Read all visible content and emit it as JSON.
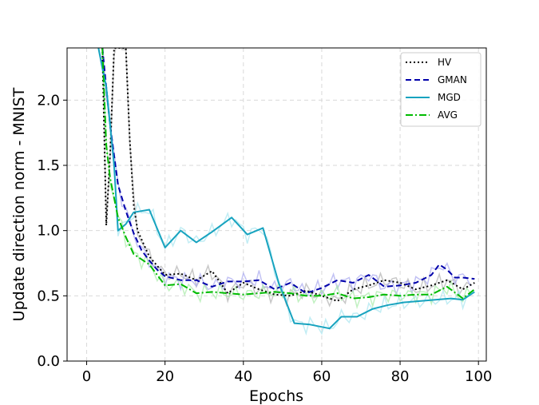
{
  "chart_data": {
    "type": "line",
    "xlabel": "Epochs",
    "ylabel": "Update direction norm - MNIST",
    "xlim": [
      -5,
      102
    ],
    "ylim": [
      0.0,
      2.4
    ],
    "xticks": [
      0,
      20,
      40,
      60,
      80,
      100
    ],
    "yticks": [
      0.0,
      0.5,
      1.0,
      1.5,
      2.0
    ],
    "xtick_labels": [
      "0",
      "20",
      "40",
      "60",
      "80",
      "100"
    ],
    "ytick_labels": [
      "0.0",
      "0.5",
      "1.0",
      "1.5",
      "2.0"
    ],
    "grid": true,
    "legend_position": "top-right",
    "series": [
      {
        "name": "HV",
        "color": "#000000",
        "linestyle": "dotted",
        "x": [
          4,
          5,
          6,
          7,
          8,
          9,
          10,
          11,
          12,
          13,
          16,
          20,
          24,
          28,
          32,
          36,
          40,
          44,
          48,
          52,
          56,
          60,
          64,
          68,
          72,
          76,
          80,
          84,
          88,
          92,
          96,
          99
        ],
        "y": [
          2.4,
          1.04,
          1.6,
          2.4,
          2.4,
          2.4,
          2.4,
          1.7,
          1.2,
          1.0,
          0.8,
          0.66,
          0.67,
          0.62,
          0.69,
          0.52,
          0.6,
          0.55,
          0.51,
          0.5,
          0.54,
          0.5,
          0.46,
          0.55,
          0.58,
          0.62,
          0.6,
          0.55,
          0.58,
          0.62,
          0.55,
          0.6
        ]
      },
      {
        "name": "GMAN",
        "color": "#0000aa",
        "linestyle": "dashed",
        "x": [
          4,
          6,
          8,
          10,
          12,
          14,
          16,
          18,
          20,
          24,
          28,
          32,
          36,
          40,
          44,
          48,
          52,
          56,
          60,
          64,
          68,
          72,
          76,
          80,
          84,
          88,
          90,
          92,
          94,
          96,
          99
        ],
        "y": [
          2.4,
          1.8,
          1.35,
          1.15,
          0.98,
          0.85,
          0.77,
          0.7,
          0.65,
          0.62,
          0.62,
          0.57,
          0.61,
          0.61,
          0.62,
          0.55,
          0.6,
          0.52,
          0.56,
          0.62,
          0.6,
          0.66,
          0.57,
          0.58,
          0.6,
          0.66,
          0.74,
          0.7,
          0.64,
          0.64,
          0.63
        ]
      },
      {
        "name": "MGD",
        "color": "#17a3bf",
        "linestyle": "solid",
        "x": [
          3,
          5,
          7,
          8,
          10,
          12,
          16,
          20,
          24,
          28,
          32,
          37,
          41,
          45,
          49,
          53,
          57,
          62,
          65,
          69,
          73,
          77,
          81,
          85,
          89,
          93,
          96,
          99
        ],
        "y": [
          2.4,
          2.1,
          1.5,
          1.0,
          1.05,
          1.14,
          1.16,
          0.87,
          1.0,
          0.91,
          0.99,
          1.1,
          0.97,
          1.02,
          0.6,
          0.29,
          0.28,
          0.25,
          0.34,
          0.34,
          0.4,
          0.43,
          0.45,
          0.46,
          0.47,
          0.48,
          0.47,
          0.53
        ]
      },
      {
        "name": "AVG",
        "color": "#00bb00",
        "linestyle": "dashdot",
        "x": [
          4,
          5,
          6,
          7,
          8,
          10,
          12,
          16,
          20,
          24,
          28,
          32,
          36,
          40,
          44,
          48,
          52,
          56,
          60,
          64,
          68,
          72,
          76,
          80,
          84,
          88,
          92,
          96,
          99
        ],
        "y": [
          2.4,
          1.65,
          1.4,
          1.25,
          1.1,
          0.95,
          0.82,
          0.74,
          0.58,
          0.59,
          0.52,
          0.53,
          0.52,
          0.51,
          0.52,
          0.53,
          0.52,
          0.5,
          0.5,
          0.52,
          0.48,
          0.49,
          0.51,
          0.5,
          0.51,
          0.51,
          0.57,
          0.48,
          0.55
        ]
      }
    ]
  }
}
